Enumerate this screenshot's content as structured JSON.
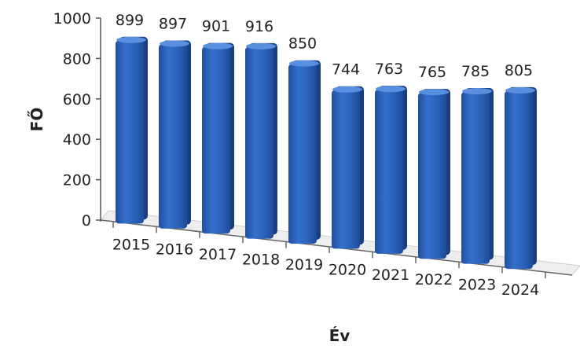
{
  "chart_data": {
    "type": "bar",
    "xlabel": "Év",
    "ylabel": "FŐ",
    "categories": [
      "2015",
      "2016",
      "2017",
      "2018",
      "2019",
      "2020",
      "2021",
      "2022",
      "2023",
      "2024"
    ],
    "values": [
      899,
      897,
      901,
      916,
      850,
      744,
      763,
      765,
      785,
      805
    ],
    "ylim": [
      0,
      1000
    ],
    "yticks": [
      "0",
      "200",
      "400",
      "600",
      "800",
      "1000"
    ],
    "data_labels": true,
    "legend": "none",
    "grid": false,
    "bar_color": "#2a5fb8"
  }
}
